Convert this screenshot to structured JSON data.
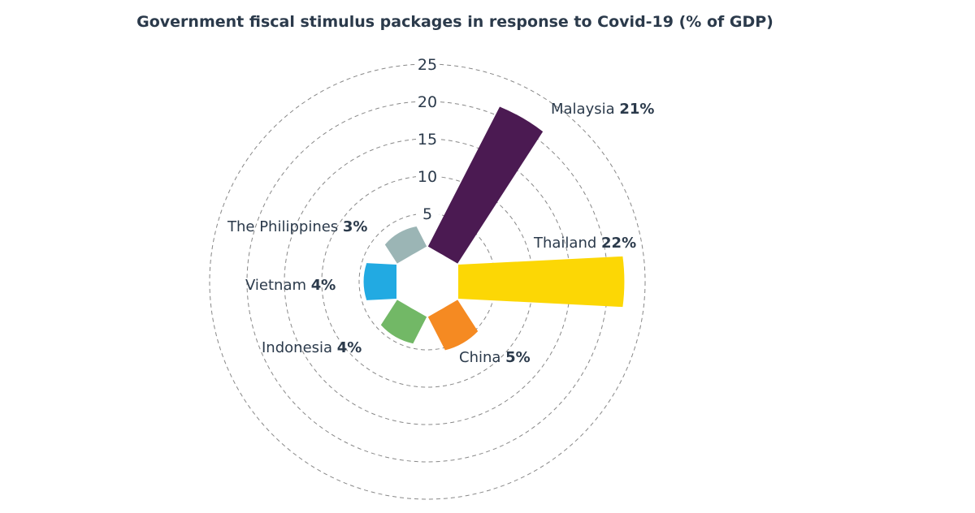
{
  "chart_data": {
    "type": "polar-bar",
    "title": "Government fiscal stimulus packages in response to Covid-19 (% of GDP)",
    "rlim": [
      0,
      25
    ],
    "ticks": [
      "5",
      "10",
      "15",
      "20",
      "25"
    ],
    "grid": true,
    "series": [
      {
        "name": "Malaysia",
        "value": 21,
        "label": "21%",
        "color": "#4b1a52"
      },
      {
        "name": "Thailand",
        "value": 22,
        "label": "22%",
        "color": "#fcd705"
      },
      {
        "name": "China",
        "value": 5,
        "label": "5%",
        "color": "#f58a22"
      },
      {
        "name": "Indonesia",
        "value": 4,
        "label": "4%",
        "color": "#72b866"
      },
      {
        "name": "Vietnam",
        "value": 4,
        "label": "4%",
        "color": "#22aae2"
      },
      {
        "name": "The Philippines",
        "value": 3,
        "label": "3%",
        "color": "#9bb5b5"
      }
    ]
  }
}
